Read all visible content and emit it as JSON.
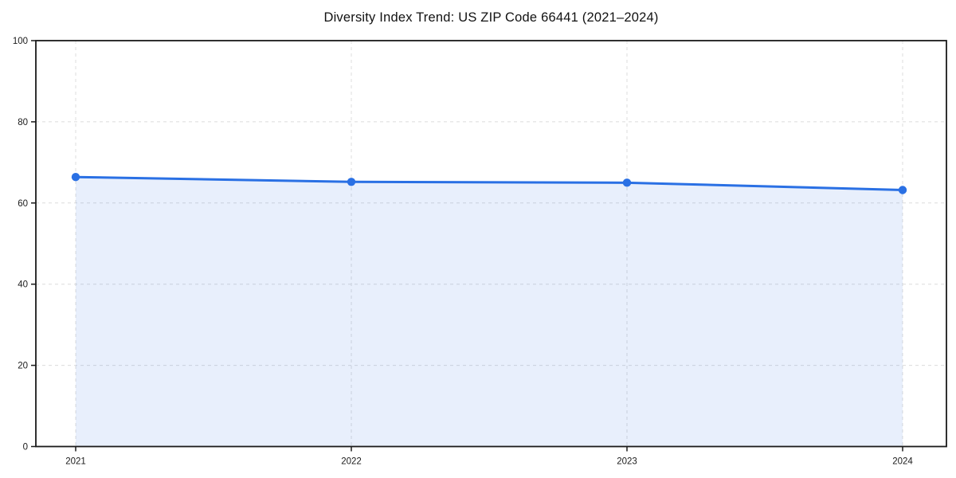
{
  "chart_data": {
    "type": "line",
    "area_fill": true,
    "title": "Diversity Index Trend: US ZIP Code 66441 (2021–2024)",
    "categories": [
      "2021",
      "2022",
      "2023",
      "2024"
    ],
    "series": [
      {
        "name": "Diversity Index",
        "values": [
          66.4,
          65.2,
          65.0,
          63.2
        ]
      }
    ],
    "xlabel": "",
    "ylabel": "",
    "ylim": [
      0,
      100
    ],
    "yticks": [
      0,
      20,
      40,
      60,
      80,
      100
    ],
    "grid": true,
    "grid_style": "dashed",
    "legend": false,
    "marker": "circle",
    "colors": {
      "line": "#2a70e4",
      "marker": "#2a70e4",
      "fill": "rgba(42,112,228,0.11)",
      "grid": "#dcdcdc",
      "axis": "#1a1a1a",
      "text": "#1a1a1a",
      "background": "#ffffff"
    }
  }
}
